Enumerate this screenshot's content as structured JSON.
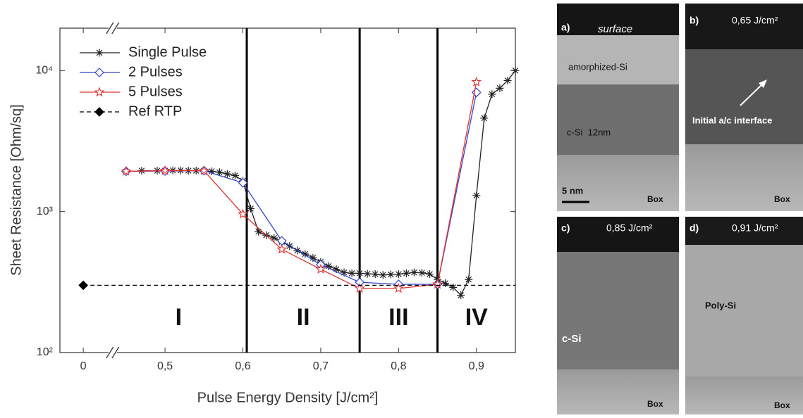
{
  "chart_data": {
    "type": "line",
    "xlabel": "Pulse Energy Density [J/cm²]",
    "ylabel": "Sheet Resistance [Ohm/sq]",
    "xlim": [
      -0.03,
      0.95
    ],
    "x_break": [
      0.035,
      0.43
    ],
    "xticks": [
      0,
      {
        "value": 0.5,
        "label": "0,5"
      },
      {
        "value": 0.6,
        "label": "0,6"
      },
      {
        "value": 0.7,
        "label": "0,7"
      },
      {
        "value": 0.8,
        "label": "0,8"
      },
      {
        "value": 0.9,
        "label": "0,9"
      }
    ],
    "ylim": [
      100,
      20000
    ],
    "log_y": true,
    "yticks": [
      {
        "value": 100,
        "label": "10²"
      },
      {
        "value": 1000,
        "label": "10³"
      },
      {
        "value": 10000,
        "label": "10⁴"
      }
    ],
    "legend": "upper left",
    "series": [
      {
        "name": "Single Pulse",
        "color": "#222222",
        "marker": "asterisk",
        "x": [
          0.47,
          0.49,
          0.5,
          0.51,
          0.52,
          0.53,
          0.54,
          0.55,
          0.56,
          0.57,
          0.58,
          0.59,
          0.6,
          0.61,
          0.62,
          0.63,
          0.64,
          0.65,
          0.66,
          0.67,
          0.68,
          0.69,
          0.7,
          0.71,
          0.72,
          0.73,
          0.74,
          0.75,
          0.76,
          0.77,
          0.78,
          0.79,
          0.8,
          0.81,
          0.82,
          0.83,
          0.84,
          0.85,
          0.86,
          0.87,
          0.88,
          0.89,
          0.9,
          0.91,
          0.92,
          0.93,
          0.94,
          0.95
        ],
        "values": [
          1950,
          1950,
          1950,
          1960,
          1960,
          1950,
          1950,
          1940,
          1930,
          1900,
          1850,
          1800,
          1650,
          1050,
          720,
          680,
          650,
          610,
          570,
          530,
          500,
          470,
          440,
          410,
          390,
          370,
          365,
          365,
          362,
          360,
          355,
          358,
          360,
          365,
          370,
          368,
          360,
          330,
          310,
          290,
          255,
          330,
          1300,
          4600,
          6800,
          7500,
          8500,
          10000
        ]
      },
      {
        "name": "2 Pulses",
        "color": "#3344cc",
        "marker": "diamond",
        "x": [
          0.45,
          0.5,
          0.55,
          0.6,
          0.65,
          0.7,
          0.75,
          0.8,
          0.85,
          0.9
        ],
        "values": [
          1930,
          1940,
          1950,
          1600,
          620,
          420,
          315,
          305,
          305,
          7000
        ]
      },
      {
        "name": "5 Pulses",
        "color": "#e03030",
        "marker": "star",
        "x": [
          0.45,
          0.5,
          0.55,
          0.6,
          0.65,
          0.7,
          0.75,
          0.8,
          0.85,
          0.9
        ],
        "values": [
          1930,
          1950,
          1950,
          960,
          540,
          390,
          285,
          285,
          305,
          8300
        ]
      },
      {
        "name": "Ref RTP",
        "color": "#000000",
        "marker": "filled-diamond",
        "dashed": true,
        "hline": true,
        "x": [
          0
        ],
        "values": [
          300
        ]
      }
    ],
    "dividers": [
      0.605,
      0.75,
      0.85
    ],
    "regions": [
      "I",
      "II",
      "III",
      "IV"
    ]
  },
  "panels": [
    {
      "label": "a)",
      "texts": [
        "surface",
        "amorphized-Si",
        "c-Si  12nm",
        "5 nm",
        "Box"
      ]
    },
    {
      "label": "b)",
      "texts": [
        "0,65 J/cm²",
        "Initial a/c interface",
        "Box"
      ]
    },
    {
      "label": "c)",
      "texts": [
        "0,85 J/cm²",
        "c-Si",
        "Box"
      ]
    },
    {
      "label": "d)",
      "texts": [
        "0,91 J/cm²",
        "Poly-Si",
        "Box"
      ]
    }
  ]
}
